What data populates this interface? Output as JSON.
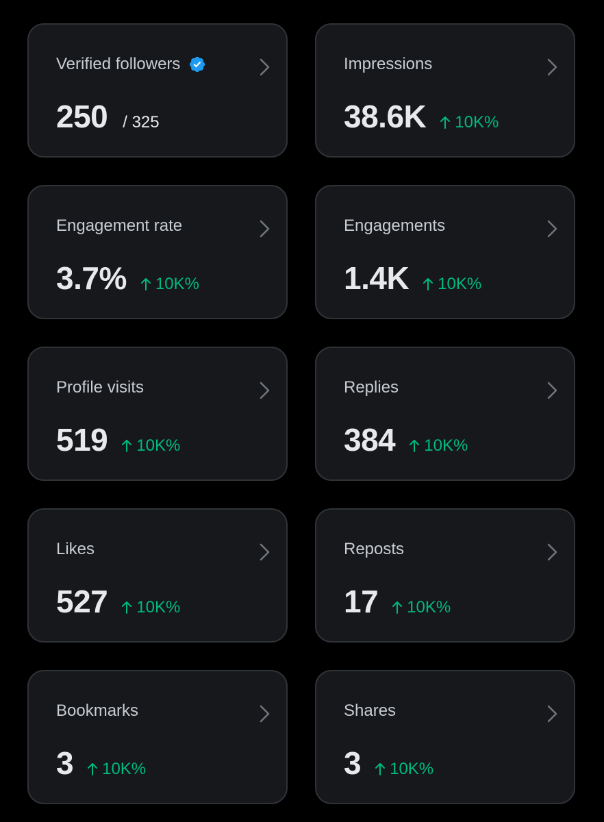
{
  "colors": {
    "background": "#000000",
    "card_background": "#16181c",
    "card_border": "#2f3336",
    "title_text": "#c8cdd2",
    "value_text": "#e7e9ea",
    "positive_change": "#00ba7c",
    "verified_badge": "#1d9bf0"
  },
  "cards": [
    {
      "title": "Verified followers",
      "value": "250",
      "total": "/ 325",
      "icon": "verified-badge-icon"
    },
    {
      "title": "Impressions",
      "value": "38.6K",
      "change": "10K%"
    },
    {
      "title": "Engagement rate",
      "value": "3.7%",
      "change": "10K%"
    },
    {
      "title": "Engagements",
      "value": "1.4K",
      "change": "10K%"
    },
    {
      "title": "Profile visits",
      "value": "519",
      "change": "10K%"
    },
    {
      "title": "Replies",
      "value": "384",
      "change": "10K%"
    },
    {
      "title": "Likes",
      "value": "527",
      "change": "10K%"
    },
    {
      "title": "Reposts",
      "value": "17",
      "change": "10K%"
    },
    {
      "title": "Bookmarks",
      "value": "3",
      "change": "10K%"
    },
    {
      "title": "Shares",
      "value": "3",
      "change": "10K%"
    }
  ]
}
